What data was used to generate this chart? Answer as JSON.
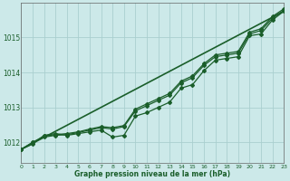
{
  "title": "Graphe pression niveau de la mer (hPa)",
  "bg_color": "#cce9e9",
  "grid_color": "#aacfcf",
  "line_color": "#1a5e2a",
  "x_ticks": [
    0,
    1,
    2,
    3,
    4,
    5,
    6,
    7,
    8,
    9,
    10,
    11,
    12,
    13,
    14,
    15,
    16,
    17,
    18,
    19,
    20,
    21,
    22,
    23
  ],
  "y_ticks": [
    1012,
    1013,
    1014,
    1015
  ],
  "ylim": [
    1011.4,
    1016.0
  ],
  "xlim": [
    0,
    23
  ],
  "straight_line": [
    1011.8,
    1015.75
  ],
  "line_wiggly": [
    1011.8,
    1011.95,
    1012.2,
    1012.25,
    1012.2,
    1012.25,
    1012.3,
    1012.35,
    1012.15,
    1012.2,
    1012.75,
    1012.85,
    1013.0,
    1013.15,
    1013.55,
    1013.65,
    1014.05,
    1014.35,
    1014.4,
    1014.45,
    1015.05,
    1015.1,
    1015.5,
    1015.75
  ],
  "line_smooth1": [
    1011.8,
    1012.0,
    1012.15,
    1012.2,
    1012.22,
    1012.28,
    1012.35,
    1012.42,
    1012.38,
    1012.45,
    1012.9,
    1013.05,
    1013.2,
    1013.35,
    1013.7,
    1013.85,
    1014.2,
    1014.45,
    1014.5,
    1014.55,
    1015.1,
    1015.2,
    1015.55,
    1015.78
  ],
  "line_smooth2": [
    1011.8,
    1012.0,
    1012.18,
    1012.22,
    1012.25,
    1012.3,
    1012.38,
    1012.45,
    1012.42,
    1012.48,
    1012.95,
    1013.1,
    1013.25,
    1013.4,
    1013.75,
    1013.9,
    1014.25,
    1014.5,
    1014.55,
    1014.6,
    1015.15,
    1015.25,
    1015.6,
    1015.82
  ]
}
